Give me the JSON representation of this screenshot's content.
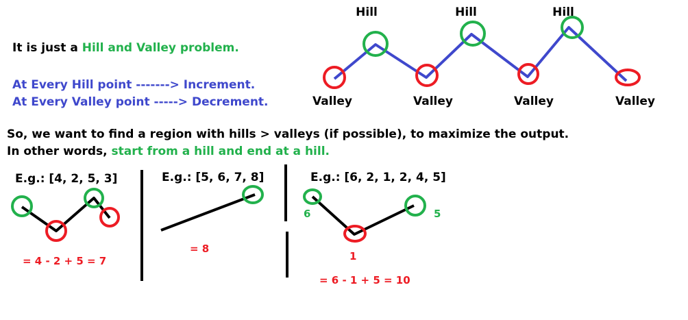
{
  "intro": {
    "line1_prefix": "It is just a ",
    "line1_highlight": "Hill and Valley problem.",
    "hill_rule": "At Every Hill point -------> Increment.",
    "valley_rule": "At Every Valley point -----> Decrement."
  },
  "main_diagram": {
    "hill_label": "Hill",
    "valley_label": "Valley"
  },
  "summary": {
    "line1": "So, we want to find a region with hills > valleys (if possible), to maximize the output.",
    "line2_prefix": "In other words, ",
    "line2_highlight": "start from a hill and end at a hill."
  },
  "examples": [
    {
      "title": "E.g.: [4, 2, 5, 3]",
      "result": "= 4 - 2 + 5 = 7"
    },
    {
      "title": "E.g.: [5, 6, 7, 8]",
      "result": "= 8"
    },
    {
      "title": "E.g.: [6, 2, 1, 2, 4, 5]",
      "result": "= 6 - 1 + 5 = 10",
      "point_labels": [
        "6",
        "1",
        "5"
      ]
    }
  ],
  "colors": {
    "hill": "#22b14c",
    "valley": "#ed1c24",
    "line": "#3f48cc",
    "text_blue": "#3f48cc",
    "text_green": "#22b14c",
    "text_red": "#ed1c24"
  }
}
